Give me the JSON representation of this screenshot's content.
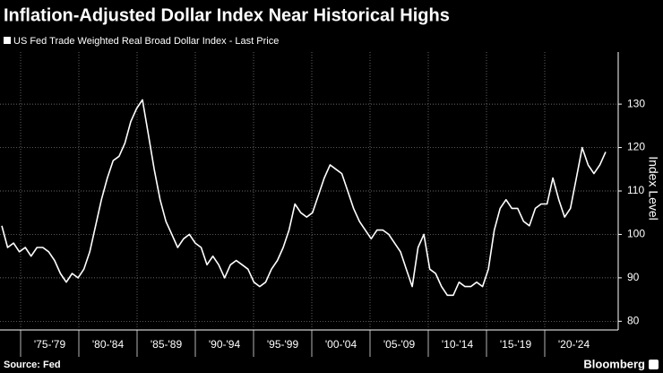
{
  "chart_data": {
    "type": "line",
    "title": "Inflation-Adjusted Dollar Index Near Historical Highs",
    "series": [
      {
        "name": "US Fed Trade Weighted Real Broad Dollar Index - Last Price",
        "color": "#ffffff",
        "values": [
          102,
          97,
          98,
          96,
          97,
          95,
          97,
          97,
          96,
          94,
          91,
          89,
          91,
          90,
          92,
          96,
          102,
          108,
          113,
          117,
          118,
          121,
          126,
          129,
          131,
          123,
          115,
          108,
          103,
          100,
          97,
          99,
          100,
          98,
          97,
          93,
          95,
          93,
          90,
          93,
          94,
          93,
          92,
          89,
          88,
          89,
          92,
          94,
          97,
          101,
          107,
          105,
          104,
          105,
          109,
          113,
          116,
          115,
          114,
          110,
          106,
          103,
          101,
          99,
          101,
          101,
          100,
          98,
          96,
          92,
          88,
          97,
          100,
          92,
          91,
          88,
          86,
          86,
          89,
          88,
          88,
          89,
          88,
          92,
          101,
          106,
          108,
          106,
          106,
          103,
          102,
          106,
          107,
          107,
          113,
          108,
          104,
          106,
          113,
          120,
          116,
          114,
          116,
          119
        ]
      }
    ],
    "x_tick_labels": [
      "'75-'79",
      "'80-'84",
      "'85-'89",
      "'90-'94",
      "'95-'99",
      "'00-'04",
      "'05-'09",
      "'10-'14",
      "'15-'19",
      "'20-'24"
    ],
    "ylabel": "Index Level",
    "ylim": [
      78,
      142
    ],
    "yticks": [
      80,
      90,
      100,
      110,
      120,
      130
    ],
    "grid": true,
    "source": "Source: Fed",
    "brand": "Bloomberg"
  }
}
